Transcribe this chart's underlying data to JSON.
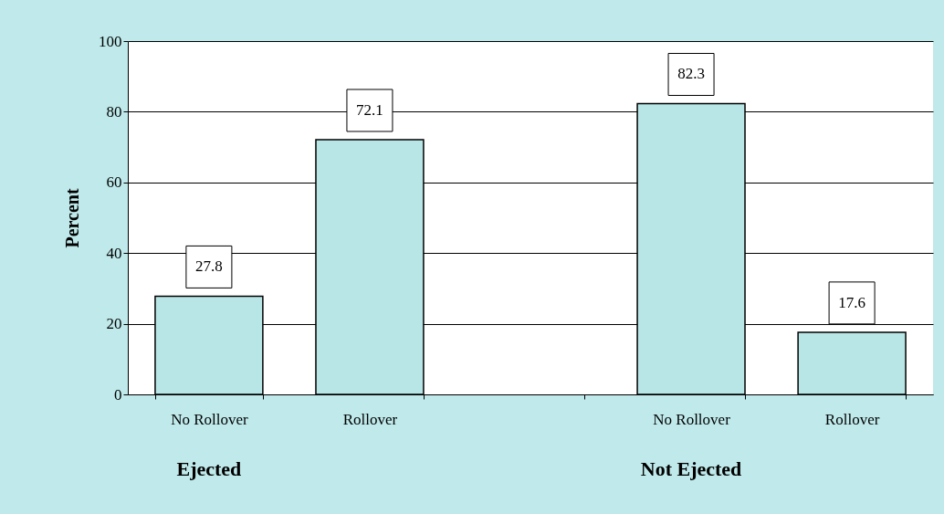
{
  "chart_data": {
    "type": "bar",
    "ylabel": "Percent",
    "categories": [
      "No Rollover",
      "Rollover",
      null,
      "No Rollover",
      "Rollover"
    ],
    "values": [
      27.8,
      72.1,
      null,
      82.3,
      17.6
    ],
    "color": "#b8e6e6",
    "ylim": [
      0,
      100
    ],
    "yticks": [
      0,
      20,
      40,
      60,
      80,
      100
    ],
    "grid": "y",
    "data_labels": true,
    "annotations": [
      "Ejected",
      "Not Ejected"
    ]
  }
}
